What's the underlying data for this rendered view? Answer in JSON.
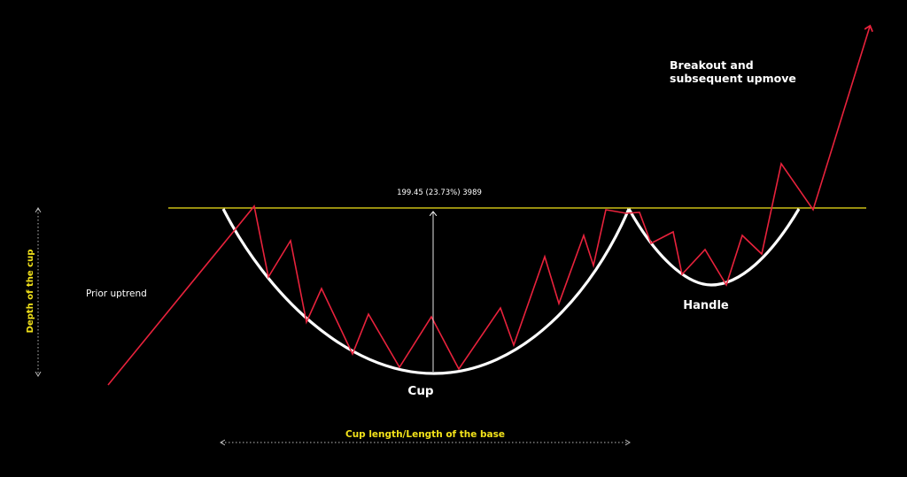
{
  "labels": {
    "prior_uptrend": "Prior uptrend",
    "depth_of_cup": "Depth of the cup",
    "measurement": "199.45 (23.73%) 3989",
    "cup": "Cup",
    "handle": "Handle",
    "breakout_line1": "Breakout and",
    "breakout_line2": "subsequent upmove",
    "cup_length": "Cup length/Length of the base"
  },
  "colors": {
    "background": "#000000",
    "price_line": "#e8223c",
    "cup_curve": "#ffffff",
    "resistance": "#f2e21a",
    "annotation_yellow": "#f2e21a",
    "text": "#ffffff"
  }
}
